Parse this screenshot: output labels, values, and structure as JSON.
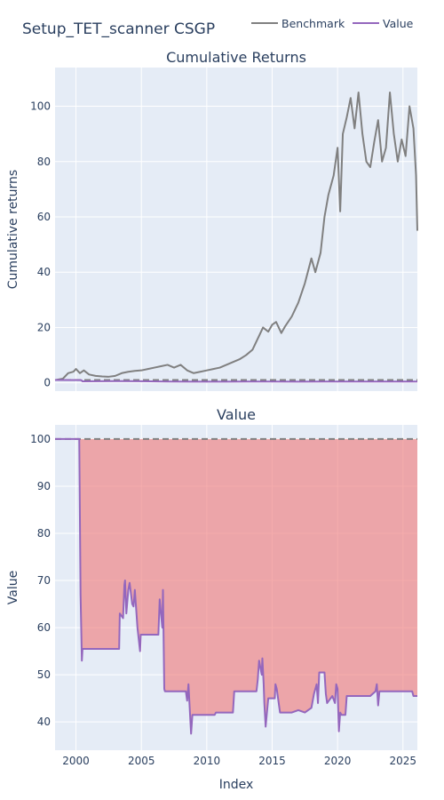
{
  "figure": {
    "title": "Setup_TET_scanner CSGP",
    "legend": {
      "placement": "top-right",
      "items": [
        {
          "name": "Benchmark",
          "color": "#808080"
        },
        {
          "name": "Value",
          "color": "#9467bd"
        }
      ]
    },
    "xlabel": "Index",
    "x_ticks": [
      "2000",
      "2005",
      "2010",
      "2015",
      "2020",
      "2025"
    ]
  },
  "chart_data": [
    {
      "type": "line",
      "title": "Cumulative Returns",
      "ylabel": "Cumulative returns",
      "xlim": [
        1998.4,
        2026.1
      ],
      "ylim": [
        -3,
        114
      ],
      "y_ticks": [
        0,
        20,
        40,
        60,
        80,
        100
      ],
      "grid": true,
      "baseline": {
        "y": 1,
        "style": "dashed",
        "color": "#808080"
      },
      "series": [
        {
          "name": "Benchmark",
          "color": "#808080",
          "x": [
            1998.4,
            1999.0,
            1999.4,
            1999.8,
            2000.0,
            2000.3,
            2000.6,
            2001.0,
            2001.5,
            2002.0,
            2002.5,
            2003.0,
            2003.5,
            2004.0,
            2004.5,
            2005.0,
            2005.5,
            2006.0,
            2006.5,
            2007.0,
            2007.5,
            2008.0,
            2008.5,
            2009.0,
            2009.5,
            2010.0,
            2010.5,
            2011.0,
            2011.5,
            2012.0,
            2012.5,
            2013.0,
            2013.5,
            2014.0,
            2014.3,
            2014.7,
            2015.0,
            2015.3,
            2015.7,
            2016.0,
            2016.5,
            2017.0,
            2017.5,
            2018.0,
            2018.3,
            2018.7,
            2019.0,
            2019.3,
            2019.7,
            2020.0,
            2020.2,
            2020.4,
            2020.7,
            2021.0,
            2021.3,
            2021.6,
            2021.9,
            2022.2,
            2022.5,
            2022.8,
            2023.1,
            2023.4,
            2023.7,
            2024.0,
            2024.3,
            2024.6,
            2024.9,
            2025.2,
            2025.5,
            2025.8,
            2026.0,
            2026.1
          ],
          "y": [
            1.0,
            1.5,
            3.5,
            4.0,
            5.0,
            3.5,
            4.5,
            3.0,
            2.5,
            2.3,
            2.2,
            2.5,
            3.5,
            4.0,
            4.3,
            4.5,
            5.0,
            5.5,
            6.0,
            6.5,
            5.5,
            6.5,
            4.5,
            3.5,
            4.0,
            4.5,
            5.0,
            5.5,
            6.5,
            7.5,
            8.5,
            10.0,
            12.0,
            17.0,
            20.0,
            18.5,
            21.0,
            22.0,
            18.0,
            20.5,
            24.0,
            29.0,
            36.0,
            45.0,
            40.0,
            47.0,
            60.0,
            68.0,
            75.0,
            85.0,
            62.0,
            90.0,
            96.0,
            103.0,
            92.0,
            105.0,
            90.0,
            80.0,
            78.0,
            87.0,
            95.0,
            80.0,
            85.0,
            105.0,
            90.0,
            80.0,
            88.0,
            82.0,
            100.0,
            92.0,
            75.0,
            55.0
          ]
        },
        {
          "name": "Value",
          "color": "#9467bd",
          "x": [
            1998.4,
            2000.4,
            2000.5,
            2003.5,
            2005.0,
            2007.0,
            2009.0,
            2011.0,
            2013.0,
            2015.0,
            2017.0,
            2019.0,
            2020.0,
            2022.0,
            2024.0,
            2026.1
          ],
          "y": [
            1.0,
            0.99,
            0.55,
            0.62,
            0.58,
            0.47,
            0.42,
            0.42,
            0.47,
            0.45,
            0.42,
            0.45,
            0.45,
            0.46,
            0.47,
            0.46
          ]
        }
      ]
    },
    {
      "type": "area",
      "title": "Value",
      "ylabel": "Value",
      "xlim": [
        1998.4,
        2026.1
      ],
      "ylim": [
        34,
        103
      ],
      "y_ticks": [
        40,
        50,
        60,
        70,
        80,
        90,
        100
      ],
      "grid": true,
      "baseline": {
        "y": 100,
        "style": "dashed",
        "color": "#808080"
      },
      "fill": {
        "between": "baseline",
        "color": "#f08080"
      },
      "series": [
        {
          "name": "Value",
          "color": "#9467bd",
          "x": [
            1998.4,
            2000.25,
            2000.35,
            2000.45,
            2000.5,
            2003.3,
            2003.35,
            2003.6,
            2003.7,
            2003.75,
            2003.85,
            2004.0,
            2004.1,
            2004.3,
            2004.4,
            2004.5,
            2004.7,
            2004.9,
            2004.95,
            2005.2,
            2006.3,
            2006.4,
            2006.6,
            2006.65,
            2006.75,
            2006.8,
            2008.4,
            2008.5,
            2008.6,
            2008.75,
            2008.8,
            2008.9,
            2010.6,
            2010.7,
            2012.0,
            2012.1,
            2013.8,
            2013.9,
            2014.0,
            2014.2,
            2014.25,
            2014.35,
            2014.4,
            2014.5,
            2014.7,
            2015.2,
            2015.25,
            2015.35,
            2015.5,
            2015.6,
            2016.5,
            2017.0,
            2017.5,
            2018.0,
            2018.2,
            2018.4,
            2018.5,
            2018.6,
            2019.0,
            2019.1,
            2019.2,
            2019.6,
            2019.8,
            2019.9,
            2020.0,
            2020.1,
            2020.2,
            2020.3,
            2020.6,
            2020.7,
            2022.0,
            2022.5,
            2022.9,
            2023.0,
            2023.1,
            2023.2,
            2025.7,
            2025.8,
            2026.1
          ],
          "y": [
            100.0,
            100.0,
            67.0,
            53.0,
            55.5,
            55.5,
            63.0,
            62.0,
            69.0,
            70.0,
            63.0,
            68.0,
            69.5,
            65.0,
            64.5,
            68.0,
            60.0,
            55.0,
            58.5,
            58.5,
            58.5,
            66.0,
            60.0,
            68.0,
            47.0,
            46.5,
            46.5,
            44.5,
            48.0,
            40.0,
            37.5,
            41.5,
            41.5,
            42.0,
            42.0,
            46.5,
            46.5,
            49.0,
            53.0,
            50.0,
            53.5,
            48.0,
            44.0,
            39.0,
            45.0,
            45.0,
            48.0,
            47.0,
            44.0,
            42.0,
            42.0,
            42.5,
            42.0,
            43.0,
            46.0,
            48.0,
            44.0,
            50.5,
            50.5,
            46.0,
            44.0,
            45.5,
            44.0,
            48.0,
            47.0,
            38.0,
            42.0,
            41.5,
            41.5,
            45.5,
            45.5,
            45.5,
            46.5,
            48.0,
            43.5,
            46.5,
            46.5,
            45.5,
            45.5
          ]
        }
      ]
    }
  ]
}
